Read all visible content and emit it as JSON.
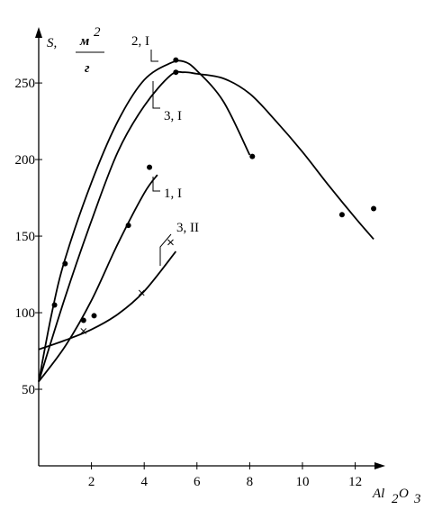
{
  "chart_data": {
    "type": "line",
    "y_label": {
      "symbol": "S,",
      "unit_numerator": "м",
      "unit_power": "2",
      "unit_denominator": "г"
    },
    "x_label": {
      "part1": "Al",
      "sub1": "2",
      "part2": "O",
      "sub2": "3"
    },
    "xlim": [
      0,
      12.8
    ],
    "ylim": [
      0,
      283
    ],
    "xticks": [
      2,
      4,
      6,
      8,
      10,
      12
    ],
    "yticks": [
      50,
      100,
      150,
      200,
      250
    ],
    "series": [
      {
        "name": "2, I",
        "marker": "dot",
        "x": [
          0,
          0.5,
          1,
          2,
          3,
          4,
          5,
          5.5,
          6,
          7,
          8
        ],
        "values": [
          55,
          100,
          135,
          185,
          225,
          252,
          263,
          264,
          258,
          238,
          203
        ],
        "markers": {
          "x": [
            0.6,
            1.0,
            5.2,
            8.1
          ],
          "y": [
            105,
            132,
            265,
            202
          ]
        }
      },
      {
        "name": "3, I",
        "marker": "dot",
        "x": [
          0,
          1,
          2,
          3,
          4,
          5,
          5.5,
          6,
          7,
          8,
          9,
          10,
          11,
          12,
          12.7
        ],
        "values": [
          55,
          110,
          160,
          205,
          235,
          255,
          257,
          256,
          253,
          243,
          225,
          205,
          183,
          162,
          148
        ],
        "markers": {
          "x": [
            5.2,
            11.5,
            12.7
          ],
          "y": [
            257,
            164,
            168
          ]
        }
      },
      {
        "name": "1, I",
        "marker": "dot",
        "x": [
          0,
          1,
          2,
          3,
          4,
          4.5
        ],
        "values": [
          55,
          78,
          108,
          145,
          178,
          190
        ],
        "markers": {
          "x": [
            1.7,
            2.1,
            3.4,
            4.2
          ],
          "y": [
            95,
            98,
            157,
            195
          ]
        }
      },
      {
        "name": "3, II",
        "marker": "cross",
        "x": [
          0,
          1,
          2,
          3,
          4,
          5.2
        ],
        "values": [
          76,
          82,
          89,
          99,
          114,
          140
        ],
        "markers": {
          "x": [
            1.7,
            3.9,
            5.0
          ],
          "y": [
            88,
            113,
            146
          ]
        }
      }
    ]
  }
}
